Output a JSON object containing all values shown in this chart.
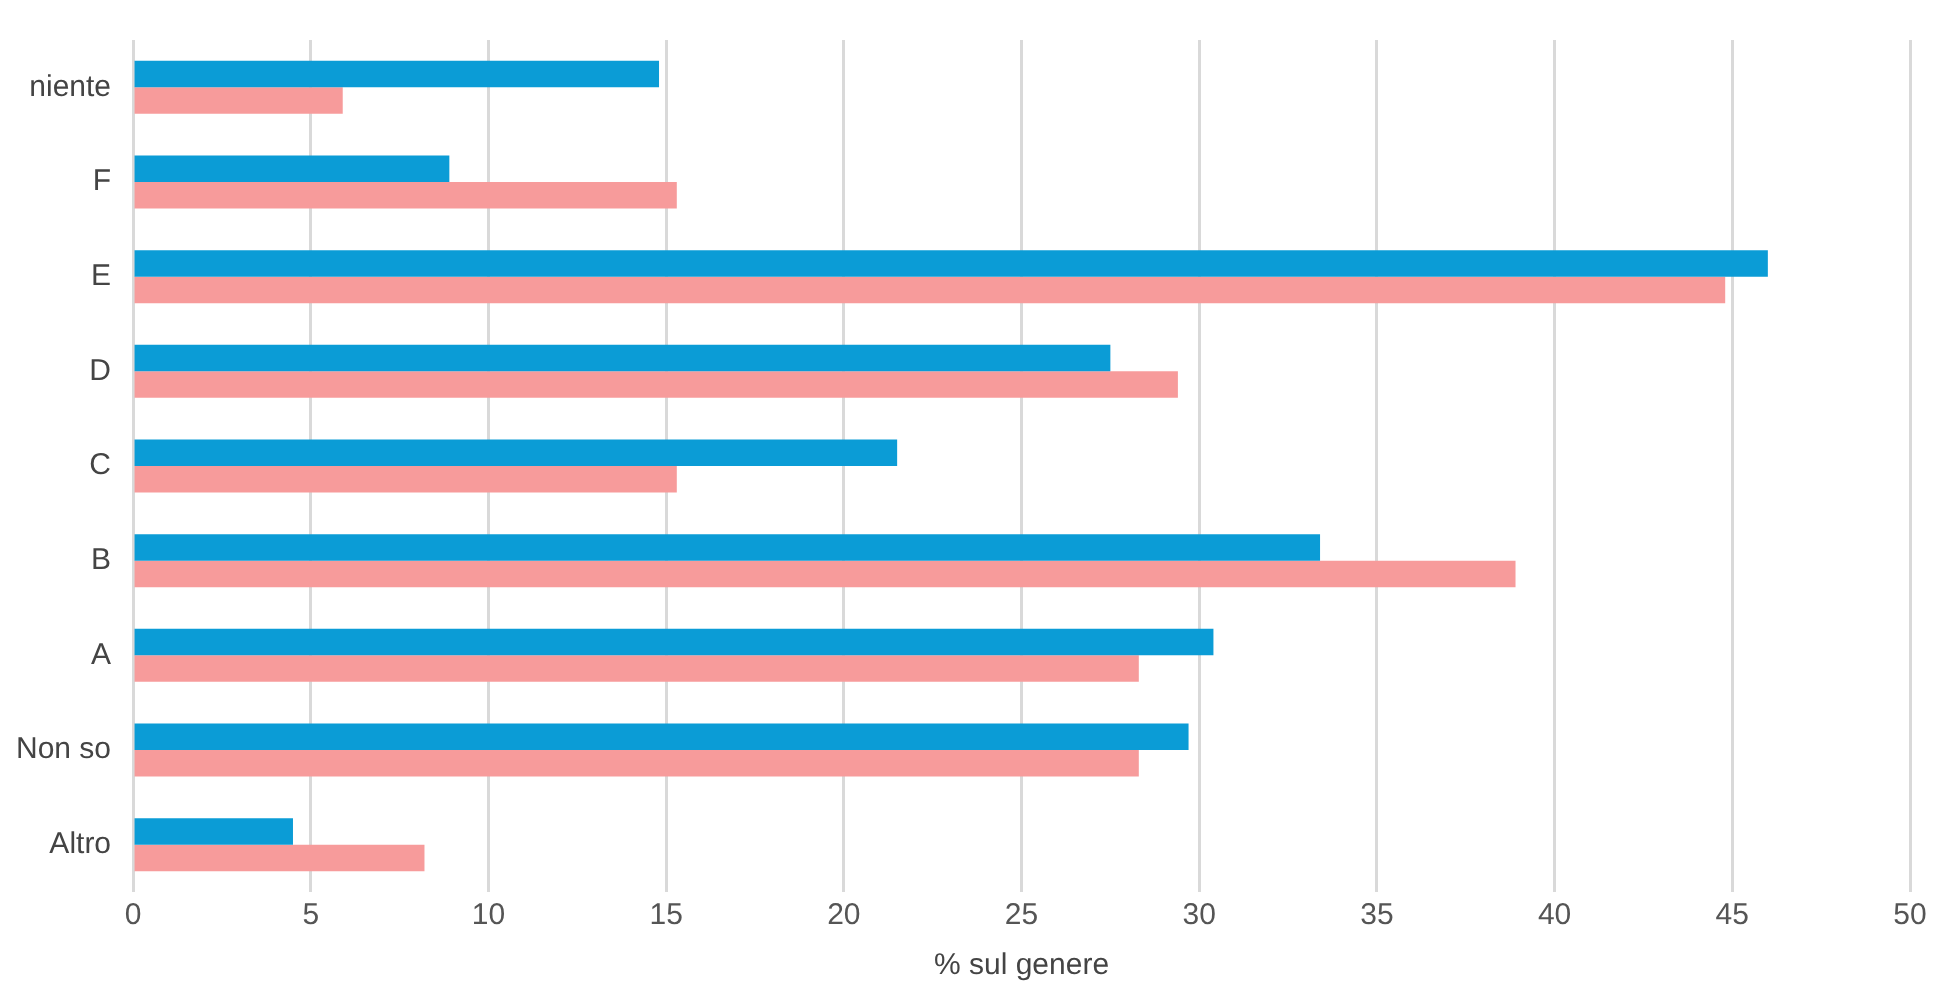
{
  "chart_data": {
    "type": "bar",
    "orientation": "horizontal",
    "xlabel": "% sul genere",
    "categories": [
      "niente",
      "F",
      "E",
      "D",
      "C",
      "B",
      "A",
      "Non so",
      "Altro"
    ],
    "series": [
      {
        "color": "#0b9cd6",
        "values": [
          14.8,
          8.9,
          46.0,
          27.5,
          21.5,
          33.4,
          30.4,
          29.7,
          4.5
        ]
      },
      {
        "color": "#f79b9b",
        "values": [
          5.9,
          15.3,
          44.8,
          29.4,
          15.3,
          38.9,
          28.3,
          28.3,
          8.2
        ]
      }
    ],
    "xlim": [
      0,
      50
    ],
    "xticks": [
      0,
      5,
      10,
      15,
      20,
      25,
      30,
      35,
      40,
      45,
      50
    ],
    "grid": "x",
    "legend": false
  }
}
